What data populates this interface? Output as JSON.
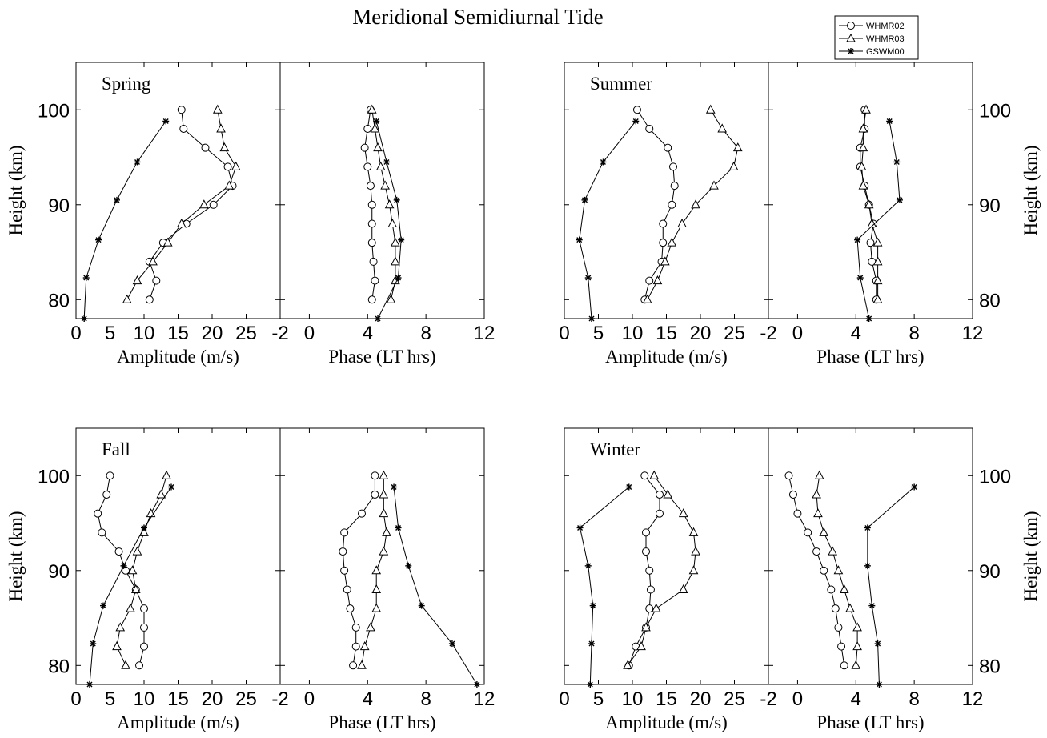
{
  "title": "Meridional Semidiurnal Tide",
  "legend": {
    "placement": "top-right",
    "entries": [
      {
        "label": "WHMR02",
        "marker": "circle"
      },
      {
        "label": "WHMR03",
        "marker": "triangle"
      },
      {
        "label": "GSWM00",
        "marker": "star"
      }
    ]
  },
  "axis_text": {
    "ylabel": "Height (km)",
    "amp_xlabel": "Amplitude (m/s)",
    "phase_xlabel": "Phase (LT hrs)",
    "amp_ticks": [
      "0",
      "5",
      "10",
      "15",
      "20",
      "25"
    ],
    "phase_ticks": [
      "-2",
      "0",
      "4",
      "8",
      "12"
    ],
    "height_ticks": [
      "80",
      "90",
      "100"
    ]
  },
  "chart_data": [
    {
      "type": "line",
      "panel": "Spring",
      "xlabel_amp": "Amplitude (m/s)",
      "xlabel_phase": "Phase (LT hrs)",
      "ylabel": "Height (km)",
      "amp_xlim": [
        0,
        30
      ],
      "phase_xlim": [
        -2,
        12
      ],
      "ylim": [
        78,
        105
      ],
      "series": [
        {
          "name": "WHMR02",
          "height": [
            100,
            98,
            96,
            94,
            92,
            90,
            88,
            86,
            84,
            82,
            80
          ],
          "amplitude": [
            15.5,
            15.8,
            19.0,
            22.3,
            23.0,
            20.2,
            16.2,
            12.8,
            10.8,
            11.8,
            10.8
          ],
          "phase": [
            4.2,
            4.0,
            3.8,
            4.0,
            4.2,
            4.3,
            4.3,
            4.3,
            4.4,
            4.5,
            4.3
          ]
        },
        {
          "name": "WHMR03",
          "height": [
            100,
            98,
            96,
            94,
            92,
            90,
            88,
            86,
            84,
            82,
            80
          ],
          "amplitude": [
            20.8,
            21.3,
            21.8,
            23.5,
            22.5,
            18.8,
            15.5,
            13.5,
            11.3,
            9.0,
            7.5
          ],
          "phase": [
            4.3,
            4.5,
            4.7,
            4.9,
            5.2,
            5.5,
            5.7,
            5.9,
            5.9,
            5.9,
            5.6
          ]
        },
        {
          "name": "GSWM00",
          "height": [
            98.8,
            94.5,
            90.5,
            86.3,
            82.3,
            78
          ],
          "amplitude": [
            13.2,
            9.0,
            6.0,
            3.3,
            1.5,
            1.2
          ],
          "phase": [
            4.6,
            5.3,
            6.0,
            6.3,
            6.1,
            4.7
          ]
        }
      ]
    },
    {
      "type": "line",
      "panel": "Summer",
      "xlabel_amp": "Amplitude (m/s)",
      "xlabel_phase": "Phase (LT hrs)",
      "ylabel": "Height (km)",
      "amp_xlim": [
        0,
        30
      ],
      "phase_xlim": [
        -2,
        12
      ],
      "ylim": [
        78,
        105
      ],
      "series": [
        {
          "name": "WHMR02",
          "height": [
            100,
            98,
            96,
            94,
            92,
            90,
            88,
            86,
            84,
            82,
            80
          ],
          "amplitude": [
            10.7,
            12.5,
            15.2,
            16.0,
            16.2,
            15.8,
            14.5,
            14.5,
            14.3,
            12.5,
            11.8
          ],
          "phase": [
            4.6,
            4.6,
            4.3,
            4.3,
            4.6,
            4.9,
            5.2,
            5.0,
            5.1,
            5.4,
            5.4
          ]
        },
        {
          "name": "WHMR03",
          "height": [
            100,
            98,
            96,
            94,
            92,
            90,
            88,
            86,
            84,
            82,
            80
          ],
          "amplitude": [
            21.5,
            23.2,
            25.5,
            24.9,
            22.0,
            19.3,
            17.3,
            15.8,
            14.8,
            13.7,
            12.2
          ],
          "phase": [
            4.7,
            4.5,
            4.5,
            4.4,
            4.5,
            4.9,
            5.1,
            5.5,
            5.5,
            5.5,
            5.5
          ]
        },
        {
          "name": "GSWM00",
          "height": [
            98.8,
            94.5,
            90.5,
            86.3,
            82.3,
            78
          ],
          "amplitude": [
            10.5,
            5.7,
            3.0,
            2.2,
            3.5,
            4.0
          ],
          "phase": [
            6.3,
            6.8,
            7.0,
            4.1,
            4.3,
            4.9
          ]
        }
      ]
    },
    {
      "type": "line",
      "panel": "Fall",
      "xlabel_amp": "Amplitude (m/s)",
      "xlabel_phase": "Phase (LT hrs)",
      "ylabel": "Height (km)",
      "amp_xlim": [
        0,
        30
      ],
      "phase_xlim": [
        -2,
        12
      ],
      "ylim": [
        78,
        105
      ],
      "series": [
        {
          "name": "WHMR02",
          "height": [
            100,
            98,
            96,
            94,
            92,
            90,
            88,
            86,
            84,
            82,
            80
          ],
          "amplitude": [
            5.0,
            4.5,
            3.2,
            3.8,
            6.3,
            7.3,
            8.8,
            10.0,
            10.0,
            10.0,
            9.3
          ],
          "phase": [
            4.5,
            4.5,
            3.6,
            2.4,
            2.3,
            2.4,
            2.6,
            2.8,
            3.2,
            3.2,
            3.0
          ]
        },
        {
          "name": "WHMR03",
          "height": [
            100,
            98,
            96,
            94,
            92,
            90,
            88,
            86,
            84,
            82,
            80
          ],
          "amplitude": [
            13.3,
            12.5,
            11.0,
            10.0,
            9.0,
            8.3,
            8.8,
            8.0,
            6.5,
            6.0,
            7.3
          ],
          "phase": [
            5.1,
            5.1,
            5.1,
            5.3,
            5.1,
            4.6,
            4.6,
            4.6,
            4.2,
            3.8,
            3.6
          ]
        },
        {
          "name": "GSWM00",
          "height": [
            98.8,
            94.5,
            90.5,
            86.3,
            82.3,
            78
          ],
          "amplitude": [
            14.0,
            10.0,
            7.0,
            4.0,
            2.5,
            2.0
          ],
          "phase": [
            5.8,
            6.1,
            6.8,
            7.7,
            9.8,
            11.5
          ]
        }
      ]
    },
    {
      "type": "line",
      "panel": "Winter",
      "xlabel_amp": "Amplitude (m/s)",
      "xlabel_phase": "Phase (LT hrs)",
      "ylabel": "Height (km)",
      "amp_xlim": [
        0,
        30
      ],
      "phase_xlim": [
        -2,
        12
      ],
      "ylim": [
        78,
        105
      ],
      "series": [
        {
          "name": "WHMR02",
          "height": [
            100,
            98,
            96,
            94,
            92,
            90,
            88,
            86,
            84,
            82,
            80
          ],
          "amplitude": [
            11.8,
            14.0,
            14.0,
            12.0,
            12.0,
            12.5,
            12.7,
            12.5,
            12.0,
            10.5,
            9.5
          ],
          "phase": [
            -0.6,
            -0.3,
            0.0,
            0.7,
            1.3,
            1.8,
            2.3,
            2.6,
            2.8,
            3.0,
            3.2
          ]
        },
        {
          "name": "WHMR03",
          "height": [
            100,
            98,
            96,
            94,
            92,
            90,
            88,
            86,
            84,
            82,
            80
          ],
          "amplitude": [
            13.2,
            15.2,
            17.5,
            19.0,
            19.3,
            19.0,
            17.5,
            13.5,
            12.0,
            11.3,
            9.3
          ],
          "phase": [
            1.5,
            1.3,
            1.4,
            1.8,
            2.4,
            2.8,
            3.2,
            3.6,
            4.1,
            4.1,
            4.0
          ]
        },
        {
          "name": "GSWM00",
          "height": [
            98.8,
            94.5,
            90.5,
            86.3,
            82.3,
            78
          ],
          "amplitude": [
            9.5,
            2.3,
            3.5,
            4.2,
            4.0,
            3.8
          ],
          "phase": [
            8.0,
            4.8,
            4.8,
            5.1,
            5.5,
            5.6
          ]
        }
      ]
    }
  ]
}
